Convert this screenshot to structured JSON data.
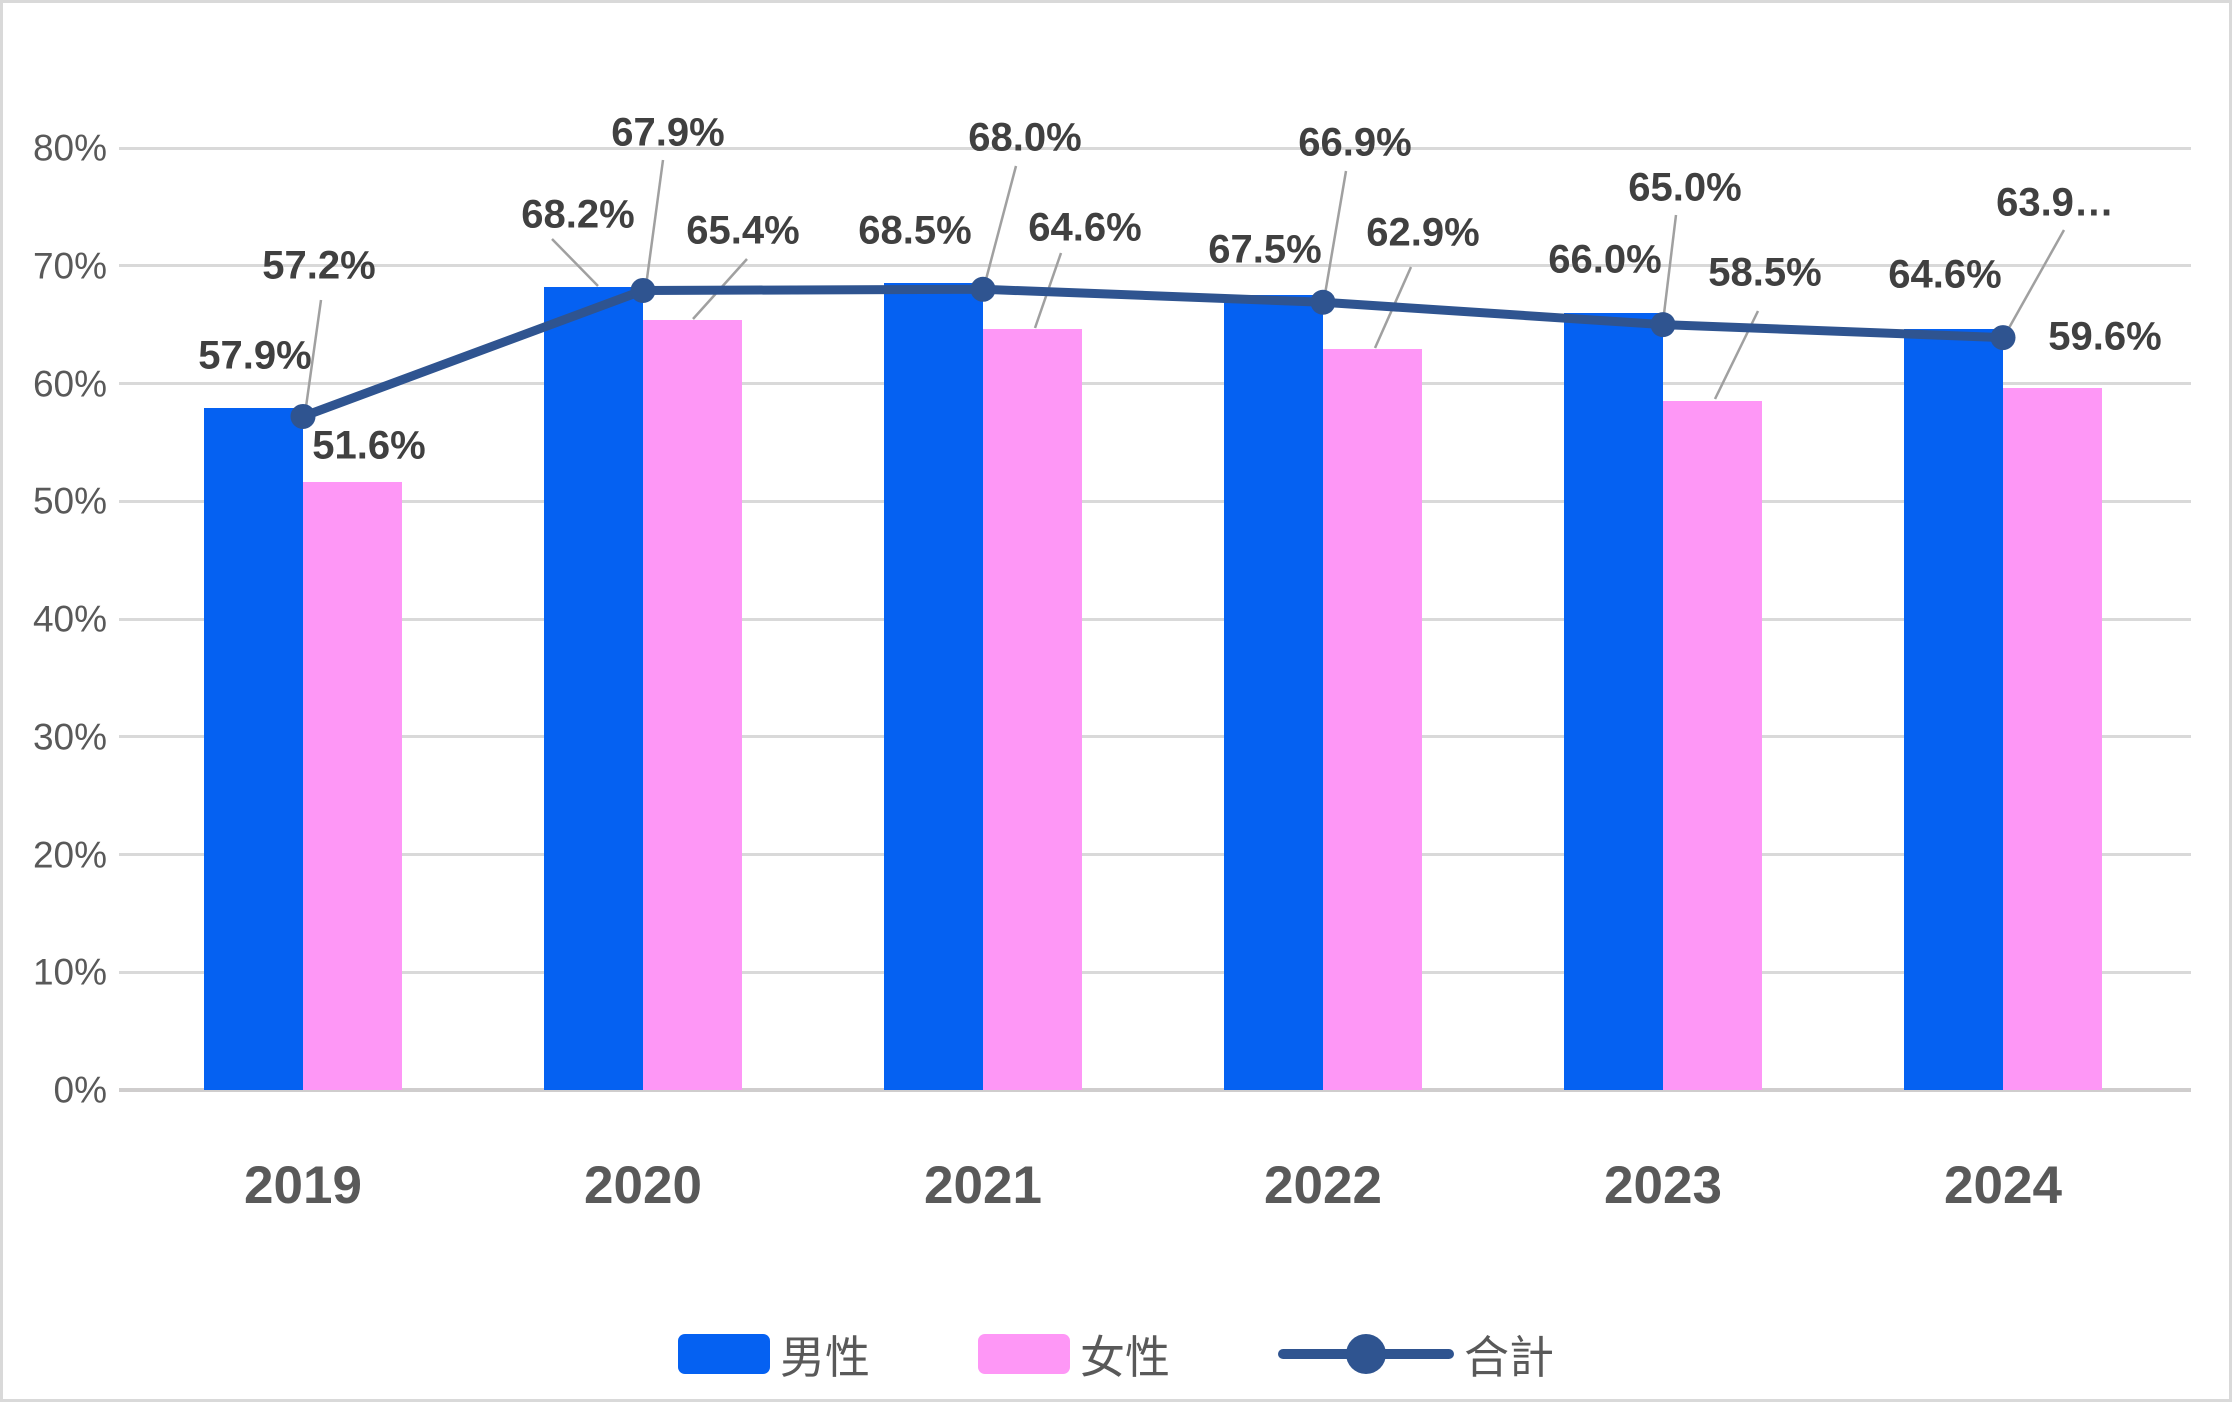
{
  "chart_data": {
    "type": "combo-bar-line",
    "categories": [
      "2019",
      "2020",
      "2021",
      "2022",
      "2023",
      "2024"
    ],
    "series": [
      {
        "name": "男性",
        "type": "bar",
        "color": "#0561F2",
        "values": [
          57.9,
          68.2,
          68.5,
          67.5,
          66.0,
          64.6
        ],
        "data_labels": [
          "57.9%",
          "68.2%",
          "68.5%",
          "67.5%",
          "66.0%",
          "64.6%"
        ]
      },
      {
        "name": "女性",
        "type": "bar",
        "color": "#FE97F6",
        "values": [
          51.6,
          65.4,
          64.6,
          62.9,
          58.5,
          59.6
        ],
        "data_labels": [
          "51.6%",
          "65.4%",
          "64.6%",
          "62.9%",
          "58.5%",
          "59.6%"
        ]
      },
      {
        "name": "合計",
        "type": "line",
        "marker": "circle",
        "color": "#2F5490",
        "values": [
          57.2,
          67.9,
          68.0,
          66.9,
          65.0,
          63.9
        ],
        "data_labels": [
          "57.2%",
          "67.9%",
          "68.0%",
          "66.9%",
          "65.0%",
          "63.9…"
        ]
      }
    ],
    "ylim": [
      0,
      80
    ],
    "ytick_step": 10,
    "ytick_labels": [
      "0%",
      "10%",
      "20%",
      "30%",
      "40%",
      "50%",
      "60%",
      "70%",
      "80%"
    ],
    "grid": true,
    "legend_position": "bottom",
    "styles": {
      "background": "#FFFFFF",
      "border_color": "#D9D9D9",
      "grid_color": "#D9D9D9",
      "baseline_color": "#CFCDCD",
      "axis_label_color": "#595959",
      "data_label_color": "#404040",
      "leader_line_color": "#A0A0A0"
    }
  }
}
